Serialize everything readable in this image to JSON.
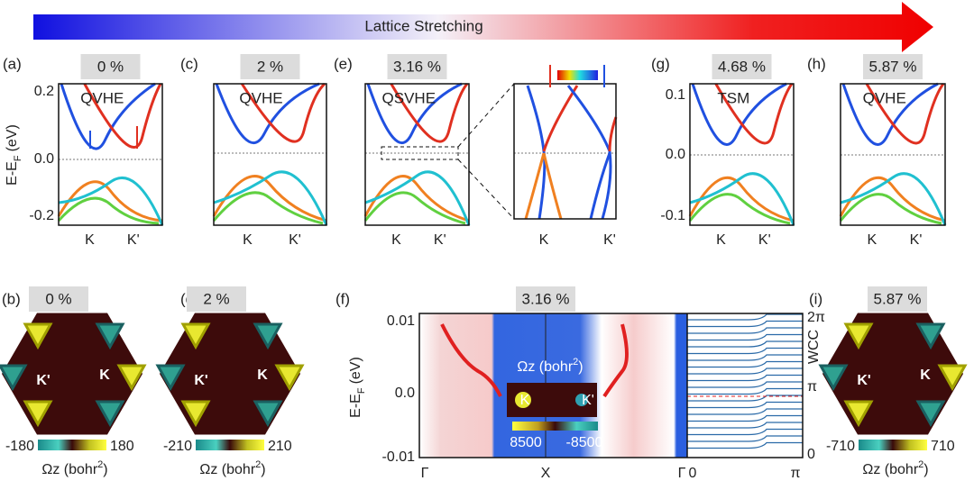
{
  "header": {
    "title": "Lattice Stretching"
  },
  "band_axis": {
    "ylabel": "E-E",
    "ylabel_sub": "F",
    "ylabel_unit": "(eV)",
    "yticks": [
      "0.2",
      "0.0",
      "-0.2"
    ]
  },
  "panels": [
    {
      "label": "(a)",
      "strain": "0 %",
      "phase": "QVHE",
      "xticks": [
        "K",
        "K'"
      ]
    },
    {
      "label": "(c)",
      "strain": "2 %",
      "phase": "QVHE",
      "xticks": [
        "K",
        "K'"
      ]
    },
    {
      "label": "(e)",
      "strain": "3.16 %",
      "phase": "QSVHE",
      "xticks": [
        "K",
        "K'"
      ]
    },
    {
      "label": "(g)",
      "strain": "4.68 %",
      "phase": "TSM",
      "xticks": [
        "K",
        "K'"
      ],
      "yticks": [
        "0.1",
        "0.0",
        "-0.1"
      ]
    },
    {
      "label": "(h)",
      "strain": "5.87 %",
      "phase": "QVHE",
      "xticks": [
        "K",
        "K'"
      ]
    }
  ],
  "zoom": {
    "xticks": [
      "K",
      "K'"
    ]
  },
  "berry": [
    {
      "label": "(b)",
      "strain": "0 %",
      "k_left": "K'",
      "k_right": "K",
      "cmin": "-180",
      "cmax": "180"
    },
    {
      "label": "(d)",
      "strain": "2 %",
      "k_left": "K'",
      "k_right": "K",
      "cmin": "-210",
      "cmax": "210"
    },
    {
      "label": "(i)",
      "strain": "5.87 %",
      "k_left": "K'",
      "k_right": "K",
      "cmin": "-710",
      "cmax": "710"
    }
  ],
  "colorbar_label": {
    "main": "Ωz (bohr",
    "sup": "2",
    "close": ")"
  },
  "f": {
    "label": "(f)",
    "strain": "3.16 %",
    "yticks": [
      "0.01",
      "0.0",
      "-0.01"
    ],
    "xticks": [
      "Γ",
      "X",
      "Γ"
    ],
    "inset_k": [
      "K",
      "K'"
    ],
    "inset_cmin": "8500",
    "inset_cmax": "-8500",
    "wcc_label": "WCC",
    "wcc_yticks": [
      "2π",
      "π",
      "0"
    ],
    "wcc_xticks": [
      "0",
      "π"
    ]
  }
}
